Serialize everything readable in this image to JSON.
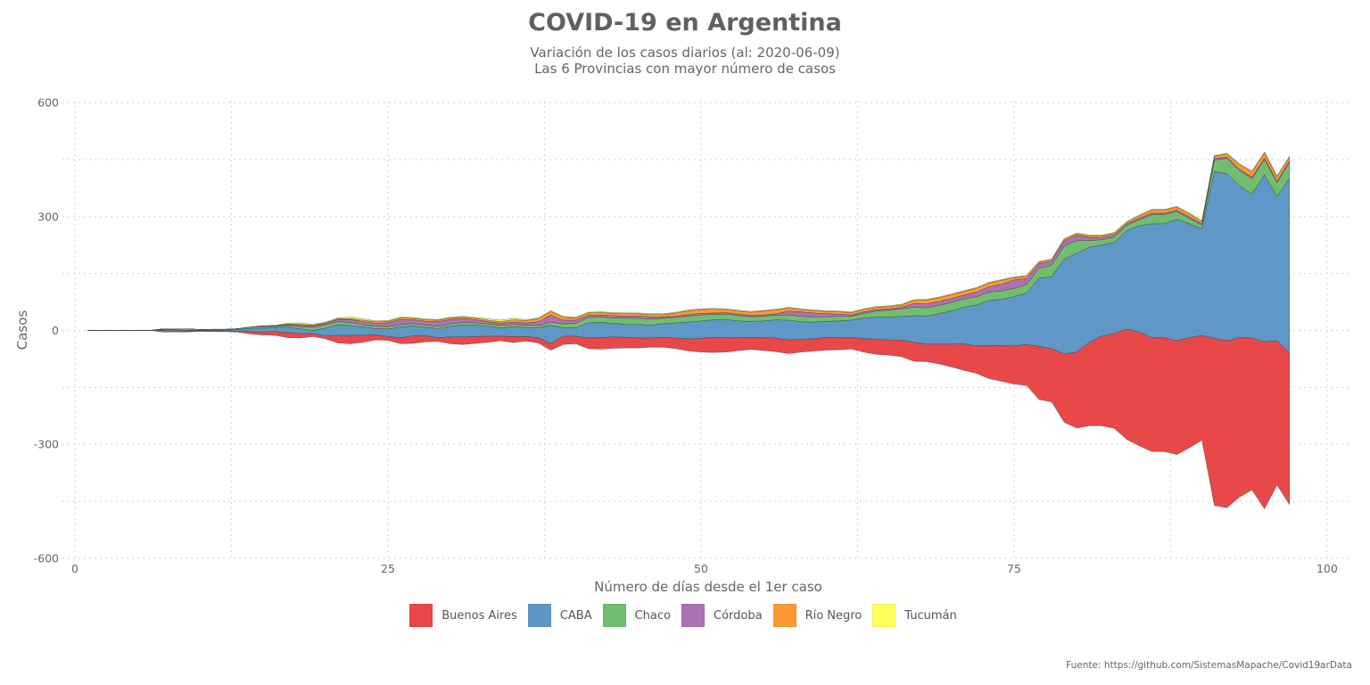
{
  "chart_data": {
    "type": "area",
    "title": "COVID-19 en Argentina",
    "subtitle_line1": "Variación de los casos diarios (al: 2020-06-09)",
    "subtitle_line2": "Las 6 Provincias con mayor número de casos",
    "xlabel": "Número de días desde el 1er caso",
    "ylabel": "Casos",
    "caption": "Fuente: https://github.com/SistemasMapache/Covid19arData",
    "xlim": [
      -1,
      102
    ],
    "ylim": [
      -605,
      605
    ],
    "x_ticks": [
      0,
      25,
      50,
      75,
      100
    ],
    "y_ticks": [
      600,
      300,
      0,
      -300,
      -600
    ],
    "grid": true,
    "legend_position": "bottom",
    "layout": "stream (centered stacked area)",
    "x": [
      1,
      2,
      3,
      4,
      5,
      6,
      7,
      8,
      9,
      10,
      11,
      12,
      13,
      14,
      15,
      16,
      17,
      18,
      19,
      20,
      21,
      22,
      23,
      24,
      25,
      26,
      27,
      28,
      29,
      30,
      31,
      32,
      33,
      34,
      35,
      36,
      37,
      38,
      39,
      40,
      41,
      42,
      43,
      44,
      45,
      46,
      47,
      48,
      49,
      50,
      51,
      52,
      53,
      54,
      55,
      56,
      57,
      58,
      59,
      60,
      61,
      62,
      63,
      64,
      65,
      66,
      67,
      68,
      69,
      70,
      71,
      72,
      73,
      74,
      75,
      76,
      77,
      78,
      79,
      80,
      81,
      82,
      83,
      84,
      85,
      86,
      87,
      88,
      89,
      90,
      91,
      92,
      93,
      94,
      95,
      96,
      97
    ],
    "series": [
      {
        "name": "Buenos Aires",
        "color": "#E41A1C",
        "values": [
          0,
          0,
          0,
          0,
          0,
          0,
          4,
          3,
          2,
          2,
          2,
          2,
          3,
          6,
          8,
          10,
          14,
          12,
          8,
          8,
          20,
          22,
          18,
          14,
          10,
          16,
          20,
          16,
          10,
          18,
          20,
          18,
          16,
          12,
          16,
          12,
          14,
          18,
          22,
          20,
          28,
          30,
          30,
          28,
          26,
          24,
          26,
          28,
          32,
          36,
          40,
          38,
          34,
          32,
          34,
          36,
          36,
          34,
          32,
          34,
          32,
          30,
          36,
          40,
          40,
          44,
          50,
          46,
          52,
          60,
          70,
          72,
          88,
          94,
          100,
          108,
          140,
          140,
          180,
          200,
          220,
          236,
          250,
          290,
          300,
          300,
          300,
          300,
          290,
          276,
          440,
          440,
          420,
          400,
          440,
          380,
          400
        ]
      },
      {
        "name": "CABA",
        "color": "#377EB8",
        "values": [
          0,
          0,
          0,
          0,
          0,
          0,
          2,
          3,
          2,
          1,
          2,
          2,
          4,
          8,
          10,
          10,
          14,
          12,
          8,
          20,
          28,
          26,
          22,
          16,
          20,
          28,
          26,
          22,
          24,
          28,
          32,
          30,
          26,
          22,
          26,
          24,
          26,
          48,
          22,
          22,
          40,
          40,
          36,
          34,
          36,
          34,
          36,
          40,
          44,
          46,
          46,
          48,
          44,
          42,
          44,
          48,
          52,
          46,
          44,
          42,
          44,
          46,
          54,
          58,
          60,
          62,
          70,
          74,
          80,
          88,
          96,
          108,
          118,
          122,
          130,
          136,
          180,
          190,
          250,
          260,
          250,
          240,
          240,
          260,
          280,
          300,
          300,
          320,
          300,
          280,
          440,
          440,
          400,
          380,
          440,
          380,
          460
        ]
      },
      {
        "name": "Chaco",
        "color": "#4DAF4A",
        "values": [
          0,
          0,
          0,
          0,
          0,
          0,
          2,
          2,
          4,
          2,
          2,
          2,
          2,
          4,
          4,
          4,
          4,
          6,
          8,
          8,
          8,
          8,
          6,
          6,
          6,
          6,
          6,
          6,
          6,
          6,
          6,
          6,
          6,
          6,
          6,
          6,
          6,
          8,
          10,
          12,
          14,
          14,
          14,
          16,
          16,
          16,
          14,
          14,
          16,
          16,
          14,
          14,
          14,
          12,
          12,
          12,
          14,
          14,
          14,
          12,
          12,
          10,
          12,
          16,
          18,
          20,
          22,
          22,
          22,
          22,
          22,
          22,
          22,
          22,
          22,
          22,
          26,
          30,
          34,
          34,
          18,
          14,
          14,
          14,
          16,
          24,
          24,
          20,
          14,
          10,
          30,
          40,
          40,
          40,
          40,
          36,
          42
        ]
      },
      {
        "name": "Córdoba",
        "color": "#984EA3",
        "values": [
          0,
          0,
          0,
          0,
          0,
          0,
          0,
          0,
          0,
          0,
          0,
          0,
          0,
          0,
          2,
          2,
          2,
          4,
          4,
          4,
          6,
          8,
          8,
          8,
          10,
          14,
          10,
          10,
          12,
          12,
          10,
          8,
          6,
          6,
          6,
          6,
          10,
          18,
          10,
          8,
          6,
          6,
          6,
          6,
          6,
          6,
          4,
          4,
          4,
          4,
          4,
          4,
          4,
          4,
          4,
          4,
          10,
          12,
          10,
          8,
          6,
          4,
          4,
          4,
          4,
          4,
          10,
          10,
          10,
          10,
          10,
          12,
          14,
          18,
          22,
          16,
          12,
          10,
          14,
          14,
          8,
          6,
          6,
          4,
          4,
          4,
          4,
          4,
          4,
          4,
          4,
          4,
          4,
          4,
          4,
          4,
          4
        ]
      },
      {
        "name": "Río Negro",
        "color": "#FF7F00",
        "values": [
          0,
          0,
          0,
          0,
          0,
          0,
          0,
          0,
          0,
          0,
          0,
          0,
          0,
          0,
          0,
          0,
          2,
          2,
          2,
          2,
          2,
          2,
          4,
          4,
          4,
          4,
          4,
          4,
          4,
          4,
          4,
          4,
          4,
          4,
          6,
          6,
          8,
          10,
          8,
          6,
          6,
          6,
          6,
          6,
          6,
          6,
          6,
          8,
          10,
          10,
          10,
          8,
          8,
          8,
          10,
          10,
          8,
          6,
          6,
          6,
          6,
          6,
          6,
          6,
          6,
          6,
          8,
          10,
          10,
          10,
          10,
          10,
          10,
          10,
          6,
          6,
          4,
          4,
          4,
          4,
          4,
          4,
          4,
          4,
          6,
          8,
          8,
          8,
          8,
          6,
          6,
          8,
          12,
          14,
          14,
          12,
          10
        ]
      },
      {
        "name": "Tucumán",
        "color": "#FFFF33",
        "values": [
          0,
          0,
          0,
          0,
          0,
          0,
          0,
          0,
          0,
          0,
          0,
          0,
          0,
          0,
          0,
          0,
          2,
          4,
          2,
          2,
          2,
          4,
          4,
          2,
          2,
          2,
          2,
          2,
          2,
          2,
          2,
          2,
          4,
          4,
          4,
          2,
          2,
          2,
          2,
          2,
          2,
          2,
          2,
          2,
          2,
          2,
          2,
          2,
          2,
          2,
          2,
          2,
          2,
          2,
          2,
          2,
          2,
          2,
          2,
          2,
          2,
          2,
          2,
          2,
          2,
          2,
          2,
          2,
          2,
          2,
          2,
          2,
          2,
          2,
          2,
          2,
          2,
          2,
          2,
          2,
          2,
          2,
          2,
          2,
          2,
          2,
          2,
          2,
          2,
          2,
          2,
          2,
          2,
          2,
          2,
          2,
          2
        ]
      }
    ]
  }
}
